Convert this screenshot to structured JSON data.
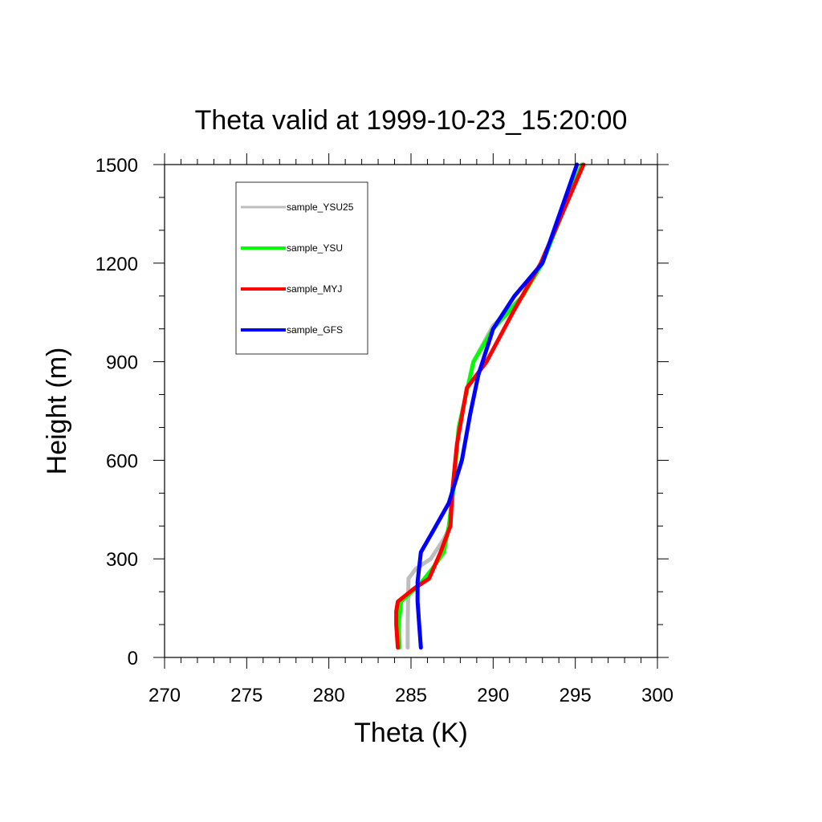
{
  "chart_data": {
    "type": "line",
    "title": "Theta valid at 1999-10-23_15:20:00",
    "xlabel": "Theta (K)",
    "ylabel": "Height (m)",
    "xlim": [
      270,
      300
    ],
    "ylim": [
      0,
      1500
    ],
    "xticks": [
      "270",
      "275",
      "280",
      "285",
      "290",
      "295",
      "300"
    ],
    "yticks": [
      "0",
      "300",
      "600",
      "900",
      "1200",
      "1500"
    ],
    "grid": false,
    "legend_position": "top-left",
    "series": [
      {
        "name": "sample_YSU25",
        "color": "#bdbdbd",
        "x": [
          284.8,
          284.8,
          284.85,
          285.3,
          286.2,
          287.0,
          287.4,
          287.6,
          287.9,
          288.8,
          290.0,
          291.8,
          293.0,
          294.2,
          295.4
        ],
        "y": [
          30,
          100,
          240,
          270,
          300,
          360,
          400,
          520,
          700,
          900,
          1010,
          1100,
          1200,
          1350,
          1500
        ]
      },
      {
        "name": "sample_YSU",
        "color": "#00ff00",
        "x": [
          284.3,
          284.25,
          284.4,
          285.5,
          286.3,
          287.0,
          287.3,
          287.6,
          287.9,
          288.8,
          290.0,
          291.8,
          293.0,
          294.2,
          295.4
        ],
        "y": [
          30,
          100,
          170,
          220,
          270,
          320,
          400,
          520,
          700,
          900,
          1000,
          1100,
          1200,
          1350,
          1500
        ]
      },
      {
        "name": "sample_MYJ",
        "color": "#ff0000",
        "x": [
          284.2,
          284.1,
          284.1,
          284.2,
          285.2,
          286.1,
          286.8,
          287.4,
          287.5,
          287.8,
          288.4,
          289.6,
          291.2,
          292.9,
          295.5
        ],
        "y": [
          30,
          100,
          140,
          170,
          210,
          240,
          320,
          400,
          500,
          650,
          820,
          900,
          1050,
          1200,
          1500
        ]
      },
      {
        "name": "sample_GFS",
        "color": "#0000ff",
        "x": [
          285.6,
          285.5,
          285.4,
          285.4,
          285.6,
          286.4,
          287.3,
          288.1,
          288.6,
          289.1,
          290.0,
          291.3,
          293.0,
          295.1
        ],
        "y": [
          30,
          100,
          170,
          230,
          320,
          390,
          470,
          600,
          740,
          860,
          1000,
          1100,
          1200,
          1500
        ]
      }
    ]
  }
}
